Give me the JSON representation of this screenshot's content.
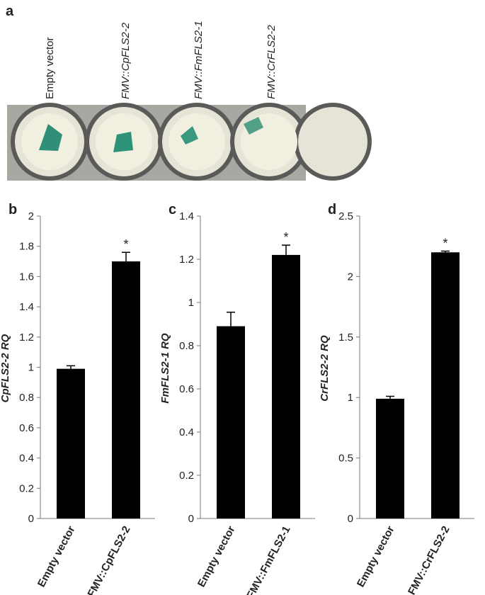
{
  "panel_a": {
    "label": "a",
    "wells": [
      "Empty vector",
      "FMV::CpFLS2-2",
      "FMV::FmFLS2-1",
      "FMV::CrFLS2-2"
    ]
  },
  "chart_data": [
    {
      "type": "bar",
      "panel": "b",
      "ylabel": "CpFLS2-2 RQ",
      "categories": [
        "Empty vector",
        "FMV::CpFLS2-2"
      ],
      "values": [
        0.99,
        1.7
      ],
      "errors": [
        0.02,
        0.06
      ],
      "color": "#000000",
      "ylim": [
        0,
        2
      ],
      "yticks": [
        0,
        0.2,
        0.4,
        0.6,
        0.8,
        1,
        1.2,
        1.4,
        1.6,
        1.8,
        2
      ],
      "annotations": [
        {
          "x": "FMV::CpFLS2-2",
          "text": "*"
        }
      ]
    },
    {
      "type": "bar",
      "panel": "c",
      "ylabel": "FmFLS2-1 RQ",
      "categories": [
        "Empty vector",
        "FMV::FmFLS2-1"
      ],
      "values": [
        0.89,
        1.22
      ],
      "errors": [
        0.065,
        0.045
      ],
      "color": "#000000",
      "ylim": [
        0,
        1.4
      ],
      "yticks": [
        0,
        0.2,
        0.4,
        0.6,
        0.8,
        1,
        1.2,
        1.4
      ],
      "annotations": [
        {
          "x": "FMV::FmFLS2-1",
          "text": "*"
        }
      ]
    },
    {
      "type": "bar",
      "panel": "d",
      "ylabel": "CrFLS2-2 RQ",
      "categories": [
        "Empty vector",
        "FMV::CrFLS2-2"
      ],
      "values": [
        0.99,
        2.2
      ],
      "errors": [
        0.02,
        0.01
      ],
      "color": "#000000",
      "ylim": [
        0,
        2.5
      ],
      "yticks": [
        0,
        0.5,
        1,
        1.5,
        2,
        2.5
      ],
      "annotations": [
        {
          "x": "FMV::CrFLS2-2",
          "text": "*"
        }
      ]
    }
  ]
}
